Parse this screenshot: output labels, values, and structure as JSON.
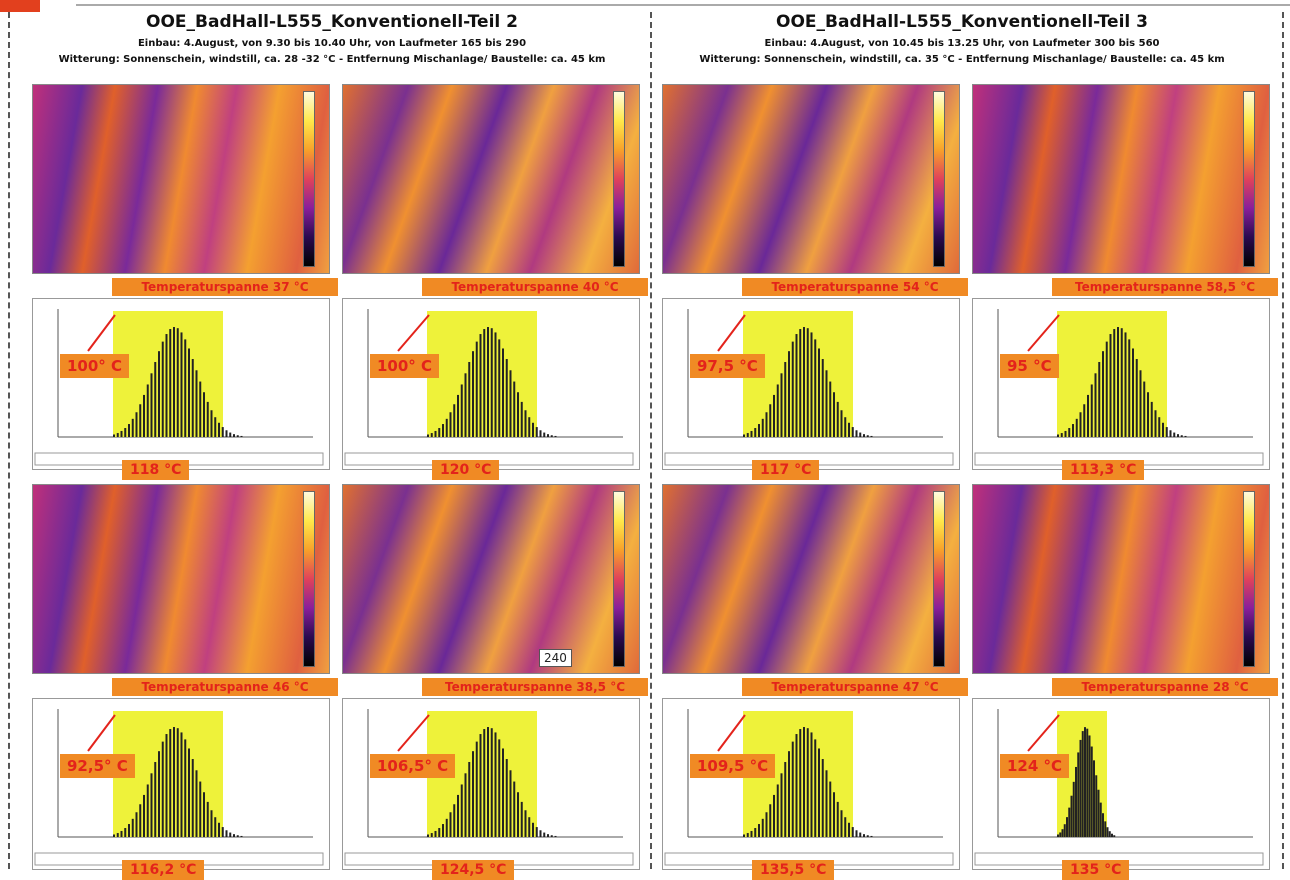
{
  "sections": [
    {
      "title": "OOE_BadHall-L555_Konventionell-Teil 2",
      "line1": "Einbau: 4.August, von 9.30 bis 10.40 Uhr,  von Laufmeter 165  bis 290",
      "line2": "Witterung: Sonnenschein, windstill, ca. 28 -32 °C - Entfernung Mischanlage/ Baustelle: ca. 45 km",
      "panels": [
        {
          "span": "Temperaturspanne 37 °C",
          "min": "100° C",
          "peak": "118 °C"
        },
        {
          "span": "Temperaturspanne 40 °C",
          "min": "100° C",
          "peak": "120 °C"
        },
        {
          "span": "Temperaturspanne 46 °C",
          "min": "92,5° C",
          "peak": "116,2 °C"
        },
        {
          "span": "Temperaturspanne 38,5 °C",
          "min": "106,5° C",
          "peak": "124,5 °C",
          "overlay": "240"
        }
      ]
    },
    {
      "title": "OOE_BadHall-L555_Konventionell-Teil 3",
      "line1": "Einbau: 4.August, von 10.45 bis 13.25 Uhr,  von Laufmeter 300  bis 560",
      "line2": "Witterung: Sonnenschein, windstill, ca. 35 °C - Entfernung Mischanlage/ Baustelle: ca. 45 km",
      "panels": [
        {
          "span": "Temperaturspanne 54 °C",
          "min": "97,5 °C",
          "peak": "117 °C"
        },
        {
          "span": "Temperaturspanne 58,5 °C",
          "min": "95 °C",
          "peak": "113,3 °C"
        },
        {
          "span": "Temperaturspanne 47 °C",
          "min": "109,5 °C",
          "peak": "135,5 °C"
        },
        {
          "span": "Temperaturspanne 28 °C",
          "min": "124 °C",
          "peak": "135 °C"
        }
      ]
    }
  ]
}
